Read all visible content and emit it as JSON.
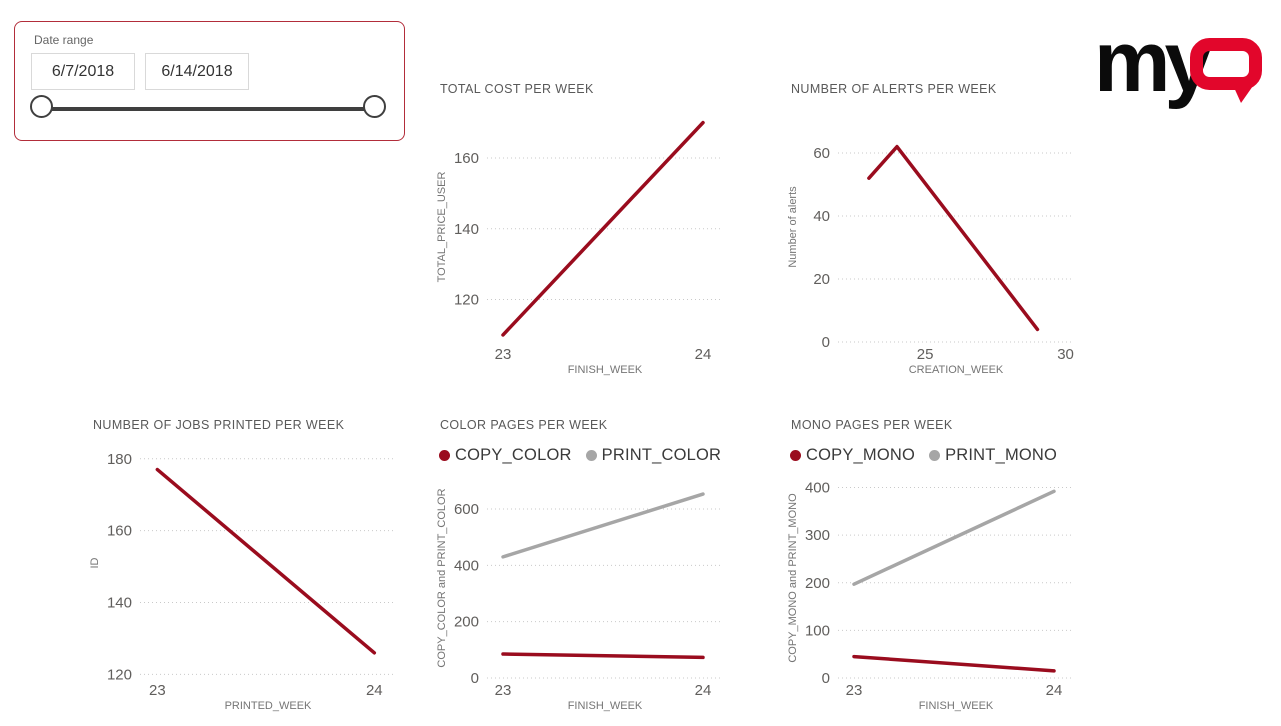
{
  "logo": {
    "my": "my",
    "q_shape": "rounded-q",
    "my_color": "#0b0b0b",
    "q_color": "#e2062b"
  },
  "slicer": {
    "label": "Date range",
    "start_date": "6/7/2018",
    "end_date": "6/14/2018",
    "border_color": "#b22d3a"
  },
  "colors": {
    "series_red": "#9a0c1e",
    "series_gray": "#a6a6a6",
    "grid": "#c9c9c9"
  },
  "chart_data": [
    {
      "type": "line",
      "title": "TOTAL COST PER WEEK",
      "xlabel": "FINISH_WEEK",
      "ylabel": "TOTAL_PRICE_USER",
      "grid": "dotted-horizontal",
      "xticks": [
        23,
        24
      ],
      "yticks": [
        120,
        140,
        160
      ],
      "xlim": [
        22.92,
        24.1
      ],
      "ylim": [
        108,
        173
      ],
      "series": [
        {
          "name": "TOTAL_PRICE_USER",
          "color": "#9a0c1e",
          "points": [
            [
              23,
              110
            ],
            [
              24,
              170
            ]
          ]
        }
      ]
    },
    {
      "type": "line",
      "title": "NUMBER OF ALERTS PER WEEK",
      "xlabel": "CREATION_WEEK",
      "ylabel": "Number of alerts",
      "grid": "dotted-horizontal",
      "xticks": [
        25,
        30
      ],
      "yticks": [
        0,
        20,
        40,
        60
      ],
      "xlim": [
        21.9,
        30.3
      ],
      "ylim": [
        0,
        73
      ],
      "series": [
        {
          "name": "Number of alerts",
          "color": "#9a0c1e",
          "points": [
            [
              23,
              52
            ],
            [
              24,
              62
            ],
            [
              29,
              4
            ]
          ]
        }
      ]
    },
    {
      "type": "line",
      "title": "NUMBER OF JOBS PRINTED PER WEEK",
      "xlabel": "PRINTED_WEEK",
      "ylabel": "ID",
      "grid": "dotted-horizontal",
      "xticks": [
        23,
        24
      ],
      "yticks": [
        120,
        140,
        160,
        180
      ],
      "xlim": [
        22.92,
        24.1
      ],
      "ylim": [
        119,
        183
      ],
      "series": [
        {
          "name": "ID",
          "color": "#9a0c1e",
          "points": [
            [
              23,
              177
            ],
            [
              24,
              126
            ]
          ]
        }
      ]
    },
    {
      "type": "line",
      "title": "COLOR PAGES PER WEEK",
      "xlabel": "FINISH_WEEK",
      "ylabel": "COPY_COLOR and PRINT_COLOR",
      "grid": "dotted-horizontal",
      "legend_position": "top",
      "legend": [
        {
          "label": "COPY_COLOR",
          "color": "#9a0c1e"
        },
        {
          "label": "PRINT_COLOR",
          "color": "#a6a6a6"
        }
      ],
      "xticks": [
        23,
        24
      ],
      "yticks": [
        0,
        200,
        400,
        600
      ],
      "xlim": [
        22.92,
        24.1
      ],
      "ylim": [
        0,
        710
      ],
      "series": [
        {
          "name": "PRINT_COLOR",
          "color": "#a6a6a6",
          "points": [
            [
              23,
              430
            ],
            [
              24,
              653
            ]
          ]
        },
        {
          "name": "COPY_COLOR",
          "color": "#9a0c1e",
          "points": [
            [
              23,
              85
            ],
            [
              24,
              73
            ]
          ]
        }
      ]
    },
    {
      "type": "line",
      "title": "MONO PAGES PER WEEK",
      "xlabel": "FINISH_WEEK",
      "ylabel": "COPY_MONO and PRINT_MONO",
      "grid": "dotted-horizontal",
      "legend_position": "top",
      "legend": [
        {
          "label": "COPY_MONO",
          "color": "#9a0c1e"
        },
        {
          "label": "PRINT_MONO",
          "color": "#a6a6a6"
        }
      ],
      "xticks": [
        23,
        24
      ],
      "yticks": [
        0,
        100,
        200,
        300,
        400
      ],
      "xlim": [
        22.92,
        24.1
      ],
      "ylim": [
        0,
        420
      ],
      "series": [
        {
          "name": "PRINT_MONO",
          "color": "#a6a6a6",
          "points": [
            [
              23,
              197
            ],
            [
              24,
              392
            ]
          ]
        },
        {
          "name": "COPY_MONO",
          "color": "#9a0c1e",
          "points": [
            [
              23,
              45
            ],
            [
              24,
              15
            ]
          ]
        }
      ]
    }
  ]
}
